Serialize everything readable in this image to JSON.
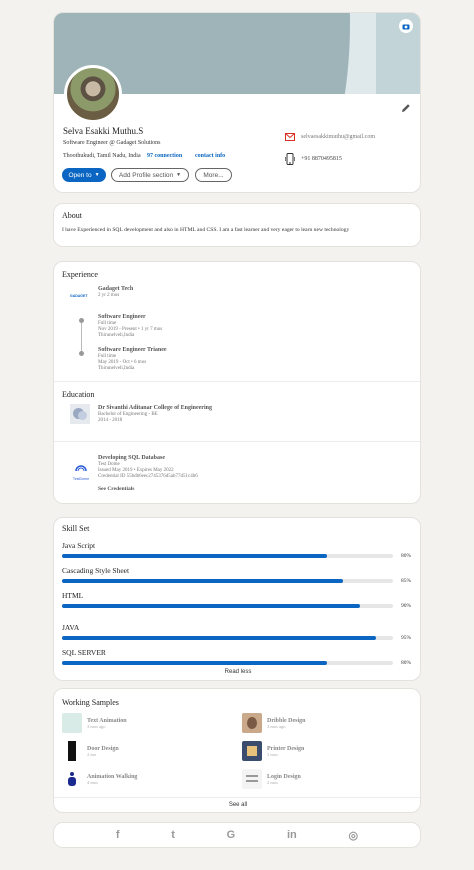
{
  "profile": {
    "name": "Selva Esakki Muthu.S",
    "headline": "Software Engineer @ Gadaget Solutions",
    "location": "Thoothukudi, Tamil Nadu, India",
    "connections": "97 connection",
    "contact_info": "contact info",
    "open_to": "Open to",
    "add_section": "Add Profile section",
    "more": "More...",
    "email": "selvaesakkimuthu@gmail.com",
    "phone": "+91 8870495815"
  },
  "about": {
    "title": "About",
    "text": "I have Experienced in SQL development and also in HTML and CSS. I am a fast learner and very eager to learn new technology"
  },
  "experience": {
    "title": "Experience",
    "company": "Gadaget Tech",
    "duration": "2 yr 2 mos",
    "roles": [
      {
        "title": "Software Engineer",
        "type": "Full time",
        "dates": "Nov 2019 - Present • 1 yr 7 mos",
        "place": "Thirunelveli,India"
      },
      {
        "title": "Software Engineer Trianee",
        "type": "Full time",
        "dates": "May 2019 - Oct • 6 mos",
        "place": "Thirunelveli,India"
      }
    ],
    "logo_text": "GADAGET"
  },
  "education": {
    "title": "Education",
    "college": "Dr Sivanthi Aditanar College of Engineering",
    "degree": "Bachelor of Engineering - BE",
    "years": "2014 - 2018"
  },
  "certification": {
    "name": "Developing SQL Database",
    "issuer": "Test Dome",
    "issued": "Issued May 2019 • Expires May 2022",
    "credential": "Credential ID 55bdb6eec2745376d5ab77d51c4b6",
    "see": "See Credentials",
    "logo_text": "TestDome"
  },
  "skills": {
    "title": "Skill Set",
    "items": [
      {
        "name": "Java Script",
        "value": 80,
        "label": "80%"
      },
      {
        "name": "Cascading Style Sheet",
        "value": 85,
        "label": "85%"
      },
      {
        "name": "HTML",
        "value": 90,
        "label": "90%"
      },
      {
        "name": "JAVA",
        "value": 95,
        "label": "95%"
      },
      {
        "name": "SQL SERVER",
        "value": 80,
        "label": "80%"
      }
    ],
    "read_less": "Read less"
  },
  "samples": {
    "title": "Working Samples",
    "items": [
      {
        "title": "Text Animation",
        "sub": "3 mos ago",
        "color": "#d8ebe6"
      },
      {
        "title": "Dribble Design",
        "sub": "3 mos ago",
        "color": "#c9a98a"
      },
      {
        "title": "Door Design",
        "sub": "2 mo",
        "color": "#111111"
      },
      {
        "title": "Printer Design",
        "sub": "3 mos",
        "color": "#3b4c6e"
      },
      {
        "title": "Animation Walking",
        "sub": "4 mos",
        "color": "#ffffff"
      },
      {
        "title": "Login Design",
        "sub": "2 mos",
        "color": "#f4f4f4"
      }
    ],
    "see_all": "See all"
  },
  "social": {
    "facebook": "f",
    "twitter": "t",
    "google": "G",
    "linkedin": "in",
    "instagram": "◎"
  },
  "colors": {
    "accent": "#0a66c2",
    "cover": "#9fb4b9",
    "background": "#f3f2ef"
  }
}
